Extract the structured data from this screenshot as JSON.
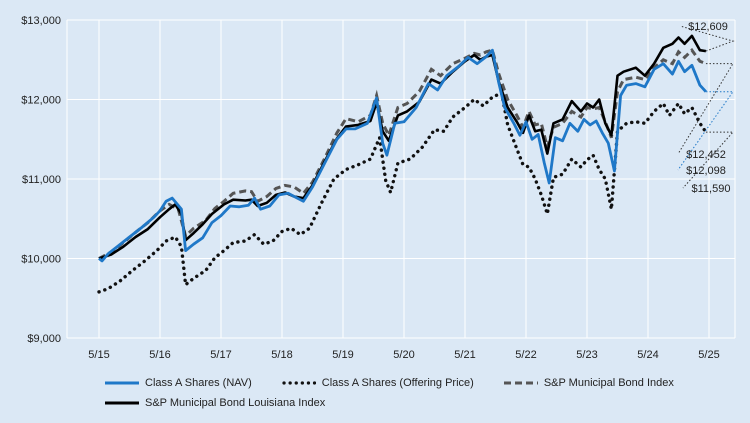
{
  "chart_data": {
    "type": "line",
    "x_tick_labels": [
      "5/15",
      "5/16",
      "5/17",
      "5/18",
      "5/19",
      "5/20",
      "5/21",
      "5/22",
      "5/23",
      "5/24",
      "5/25"
    ],
    "y_tick_labels": [
      "$9,000",
      "$10,000",
      "$11,000",
      "$12,000",
      "$13,000"
    ],
    "ylim": [
      9000,
      13000
    ],
    "grid": true,
    "legend_position": "bottom",
    "colors": {
      "background": "#dbe8f5",
      "grid": "#ffffff",
      "nav": "#1f78c8",
      "offer": "#111111",
      "muni": "#555555",
      "louisiana": "#000000"
    },
    "series": [
      {
        "name": "Class A Shares (NAV)",
        "style": "solid-blue",
        "end_label": "$12,098",
        "points": [
          [
            0,
            10000
          ],
          [
            0.05,
            9970
          ],
          [
            0.15,
            10060
          ],
          [
            0.3,
            10150
          ],
          [
            0.5,
            10270
          ],
          [
            0.7,
            10390
          ],
          [
            0.9,
            10520
          ],
          [
            1.0,
            10600
          ],
          [
            1.1,
            10720
          ],
          [
            1.2,
            10760
          ],
          [
            1.35,
            10620
          ],
          [
            1.42,
            10100
          ],
          [
            1.55,
            10180
          ],
          [
            1.7,
            10260
          ],
          [
            1.85,
            10450
          ],
          [
            2.0,
            10540
          ],
          [
            2.15,
            10660
          ],
          [
            2.3,
            10650
          ],
          [
            2.45,
            10670
          ],
          [
            2.55,
            10760
          ],
          [
            2.65,
            10620
          ],
          [
            2.8,
            10660
          ],
          [
            2.95,
            10800
          ],
          [
            3.1,
            10820
          ],
          [
            3.25,
            10760
          ],
          [
            3.35,
            10720
          ],
          [
            3.5,
            10900
          ],
          [
            3.7,
            11200
          ],
          [
            3.9,
            11500
          ],
          [
            4.05,
            11630
          ],
          [
            4.2,
            11630
          ],
          [
            4.4,
            11700
          ],
          [
            4.55,
            12020
          ],
          [
            4.65,
            11450
          ],
          [
            4.72,
            11300
          ],
          [
            4.85,
            11700
          ],
          [
            5.0,
            11720
          ],
          [
            5.2,
            11900
          ],
          [
            5.4,
            12200
          ],
          [
            5.55,
            12120
          ],
          [
            5.7,
            12300
          ],
          [
            5.9,
            12420
          ],
          [
            6.05,
            12530
          ],
          [
            6.2,
            12450
          ],
          [
            6.35,
            12540
          ],
          [
            6.45,
            12620
          ],
          [
            6.55,
            12220
          ],
          [
            6.65,
            11900
          ],
          [
            6.8,
            11700
          ],
          [
            6.9,
            11550
          ],
          [
            7.0,
            11720
          ],
          [
            7.1,
            11500
          ],
          [
            7.2,
            11560
          ],
          [
            7.3,
            11200
          ],
          [
            7.38,
            10950
          ],
          [
            7.48,
            11520
          ],
          [
            7.6,
            11480
          ],
          [
            7.72,
            11700
          ],
          [
            7.85,
            11600
          ],
          [
            7.95,
            11750
          ],
          [
            8.05,
            11680
          ],
          [
            8.15,
            11730
          ],
          [
            8.25,
            11580
          ],
          [
            8.35,
            11450
          ],
          [
            8.45,
            11100
          ],
          [
            8.55,
            12050
          ],
          [
            8.65,
            12180
          ],
          [
            8.8,
            12200
          ],
          [
            8.95,
            12160
          ],
          [
            9.1,
            12380
          ],
          [
            9.25,
            12450
          ],
          [
            9.4,
            12320
          ],
          [
            9.5,
            12480
          ],
          [
            9.6,
            12350
          ],
          [
            9.72,
            12430
          ],
          [
            9.85,
            12180
          ],
          [
            9.95,
            12098
          ]
        ]
      },
      {
        "name": "Class A Shares (Offering Price)",
        "style": "dotted-black",
        "end_label": "$11,590",
        "points": [
          [
            0,
            9580
          ],
          [
            0.15,
            9620
          ],
          [
            0.35,
            9720
          ],
          [
            0.55,
            9850
          ],
          [
            0.75,
            9970
          ],
          [
            0.95,
            10100
          ],
          [
            1.1,
            10220
          ],
          [
            1.25,
            10270
          ],
          [
            1.35,
            10150
          ],
          [
            1.42,
            9670
          ],
          [
            1.55,
            9750
          ],
          [
            1.75,
            9850
          ],
          [
            1.9,
            10010
          ],
          [
            2.05,
            10100
          ],
          [
            2.2,
            10200
          ],
          [
            2.4,
            10220
          ],
          [
            2.55,
            10300
          ],
          [
            2.7,
            10180
          ],
          [
            2.85,
            10220
          ],
          [
            3.0,
            10340
          ],
          [
            3.15,
            10380
          ],
          [
            3.3,
            10300
          ],
          [
            3.45,
            10380
          ],
          [
            3.65,
            10700
          ],
          [
            3.85,
            11000
          ],
          [
            4.05,
            11120
          ],
          [
            4.25,
            11180
          ],
          [
            4.45,
            11250
          ],
          [
            4.6,
            11520
          ],
          [
            4.7,
            10980
          ],
          [
            4.78,
            10830
          ],
          [
            4.9,
            11200
          ],
          [
            5.1,
            11250
          ],
          [
            5.3,
            11400
          ],
          [
            5.5,
            11620
          ],
          [
            5.65,
            11600
          ],
          [
            5.8,
            11780
          ],
          [
            6.0,
            11900
          ],
          [
            6.15,
            12000
          ],
          [
            6.3,
            11920
          ],
          [
            6.45,
            12030
          ],
          [
            6.6,
            12080
          ],
          [
            6.7,
            11680
          ],
          [
            6.85,
            11380
          ],
          [
            6.95,
            11180
          ],
          [
            7.05,
            11150
          ],
          [
            7.15,
            11000
          ],
          [
            7.25,
            10800
          ],
          [
            7.35,
            10560
          ],
          [
            7.45,
            11020
          ],
          [
            7.6,
            11060
          ],
          [
            7.75,
            11250
          ],
          [
            7.9,
            11150
          ],
          [
            8.0,
            11240
          ],
          [
            8.1,
            11300
          ],
          [
            8.2,
            11120
          ],
          [
            8.3,
            11000
          ],
          [
            8.4,
            10620
          ],
          [
            8.5,
            11600
          ],
          [
            8.65,
            11700
          ],
          [
            8.8,
            11720
          ],
          [
            8.95,
            11700
          ],
          [
            9.1,
            11850
          ],
          [
            9.25,
            11950
          ],
          [
            9.35,
            11800
          ],
          [
            9.5,
            11950
          ],
          [
            9.6,
            11820
          ],
          [
            9.72,
            11900
          ],
          [
            9.85,
            11700
          ],
          [
            9.95,
            11590
          ]
        ]
      },
      {
        "name": "S&P Municipal Bond Index",
        "style": "dashed-gray",
        "end_label": "$12,452",
        "points": [
          [
            0,
            10000
          ],
          [
            0.2,
            10080
          ],
          [
            0.4,
            10200
          ],
          [
            0.6,
            10330
          ],
          [
            0.8,
            10450
          ],
          [
            1.0,
            10600
          ],
          [
            1.15,
            10680
          ],
          [
            1.3,
            10620
          ],
          [
            1.42,
            10280
          ],
          [
            1.55,
            10380
          ],
          [
            1.75,
            10480
          ],
          [
            1.9,
            10630
          ],
          [
            2.05,
            10720
          ],
          [
            2.2,
            10820
          ],
          [
            2.4,
            10850
          ],
          [
            2.5,
            10840
          ],
          [
            2.6,
            10720
          ],
          [
            2.75,
            10780
          ],
          [
            2.9,
            10880
          ],
          [
            3.05,
            10920
          ],
          [
            3.2,
            10900
          ],
          [
            3.35,
            10820
          ],
          [
            3.5,
            10960
          ],
          [
            3.7,
            11260
          ],
          [
            3.9,
            11580
          ],
          [
            4.05,
            11760
          ],
          [
            4.25,
            11720
          ],
          [
            4.45,
            11800
          ],
          [
            4.55,
            12050
          ],
          [
            4.65,
            11700
          ],
          [
            4.75,
            11550
          ],
          [
            4.9,
            11900
          ],
          [
            5.05,
            11950
          ],
          [
            5.25,
            12100
          ],
          [
            5.45,
            12380
          ],
          [
            5.6,
            12300
          ],
          [
            5.8,
            12450
          ],
          [
            6.0,
            12520
          ],
          [
            6.15,
            12580
          ],
          [
            6.25,
            12560
          ],
          [
            6.35,
            12600
          ],
          [
            6.45,
            12620
          ],
          [
            6.55,
            12330
          ],
          [
            6.7,
            12000
          ],
          [
            6.85,
            11800
          ],
          [
            6.95,
            11650
          ],
          [
            7.05,
            11850
          ],
          [
            7.15,
            11680
          ],
          [
            7.25,
            11700
          ],
          [
            7.35,
            11400
          ],
          [
            7.45,
            11650
          ],
          [
            7.6,
            11700
          ],
          [
            7.75,
            11850
          ],
          [
            7.9,
            11780
          ],
          [
            8.0,
            11900
          ],
          [
            8.1,
            11880
          ],
          [
            8.2,
            11900
          ],
          [
            8.3,
            11720
          ],
          [
            8.4,
            11520
          ],
          [
            8.5,
            12100
          ],
          [
            8.6,
            12250
          ],
          [
            8.8,
            12280
          ],
          [
            8.95,
            12250
          ],
          [
            9.1,
            12400
          ],
          [
            9.25,
            12500
          ],
          [
            9.4,
            12450
          ],
          [
            9.5,
            12600
          ],
          [
            9.6,
            12530
          ],
          [
            9.72,
            12620
          ],
          [
            9.85,
            12480
          ],
          [
            9.95,
            12452
          ]
        ]
      },
      {
        "name": "S&P Municipal Bond Louisiana Index",
        "style": "solid-black",
        "end_label": "$12,609",
        "points": [
          [
            0,
            10000
          ],
          [
            0.2,
            10050
          ],
          [
            0.4,
            10150
          ],
          [
            0.6,
            10270
          ],
          [
            0.8,
            10370
          ],
          [
            1.0,
            10520
          ],
          [
            1.15,
            10620
          ],
          [
            1.25,
            10680
          ],
          [
            1.35,
            10560
          ],
          [
            1.42,
            10230
          ],
          [
            1.55,
            10320
          ],
          [
            1.7,
            10430
          ],
          [
            1.85,
            10560
          ],
          [
            2.05,
            10680
          ],
          [
            2.2,
            10740
          ],
          [
            2.4,
            10730
          ],
          [
            2.5,
            10740
          ],
          [
            2.6,
            10660
          ],
          [
            2.75,
            10700
          ],
          [
            2.9,
            10800
          ],
          [
            3.05,
            10830
          ],
          [
            3.2,
            10780
          ],
          [
            3.35,
            10760
          ],
          [
            3.5,
            10920
          ],
          [
            3.7,
            11220
          ],
          [
            3.9,
            11510
          ],
          [
            4.05,
            11660
          ],
          [
            4.25,
            11680
          ],
          [
            4.45,
            11730
          ],
          [
            4.55,
            11960
          ],
          [
            4.65,
            11600
          ],
          [
            4.75,
            11480
          ],
          [
            4.9,
            11800
          ],
          [
            5.05,
            11850
          ],
          [
            5.25,
            11970
          ],
          [
            5.45,
            12250
          ],
          [
            5.6,
            12200
          ],
          [
            5.8,
            12350
          ],
          [
            6.0,
            12480
          ],
          [
            6.15,
            12560
          ],
          [
            6.25,
            12500
          ],
          [
            6.35,
            12540
          ],
          [
            6.45,
            12560
          ],
          [
            6.55,
            12230
          ],
          [
            6.7,
            11900
          ],
          [
            6.85,
            11720
          ],
          [
            6.95,
            11580
          ],
          [
            7.05,
            11800
          ],
          [
            7.15,
            11600
          ],
          [
            7.25,
            11620
          ],
          [
            7.35,
            11320
          ],
          [
            7.45,
            11700
          ],
          [
            7.6,
            11750
          ],
          [
            7.75,
            11980
          ],
          [
            7.9,
            11850
          ],
          [
            8.0,
            11950
          ],
          [
            8.1,
            11900
          ],
          [
            8.2,
            12000
          ],
          [
            8.3,
            11700
          ],
          [
            8.4,
            11550
          ],
          [
            8.5,
            12300
          ],
          [
            8.6,
            12350
          ],
          [
            8.8,
            12400
          ],
          [
            8.95,
            12300
          ],
          [
            9.1,
            12450
          ],
          [
            9.25,
            12650
          ],
          [
            9.4,
            12700
          ],
          [
            9.5,
            12780
          ],
          [
            9.6,
            12700
          ],
          [
            9.72,
            12800
          ],
          [
            9.85,
            12620
          ],
          [
            9.95,
            12609
          ]
        ]
      }
    ]
  }
}
